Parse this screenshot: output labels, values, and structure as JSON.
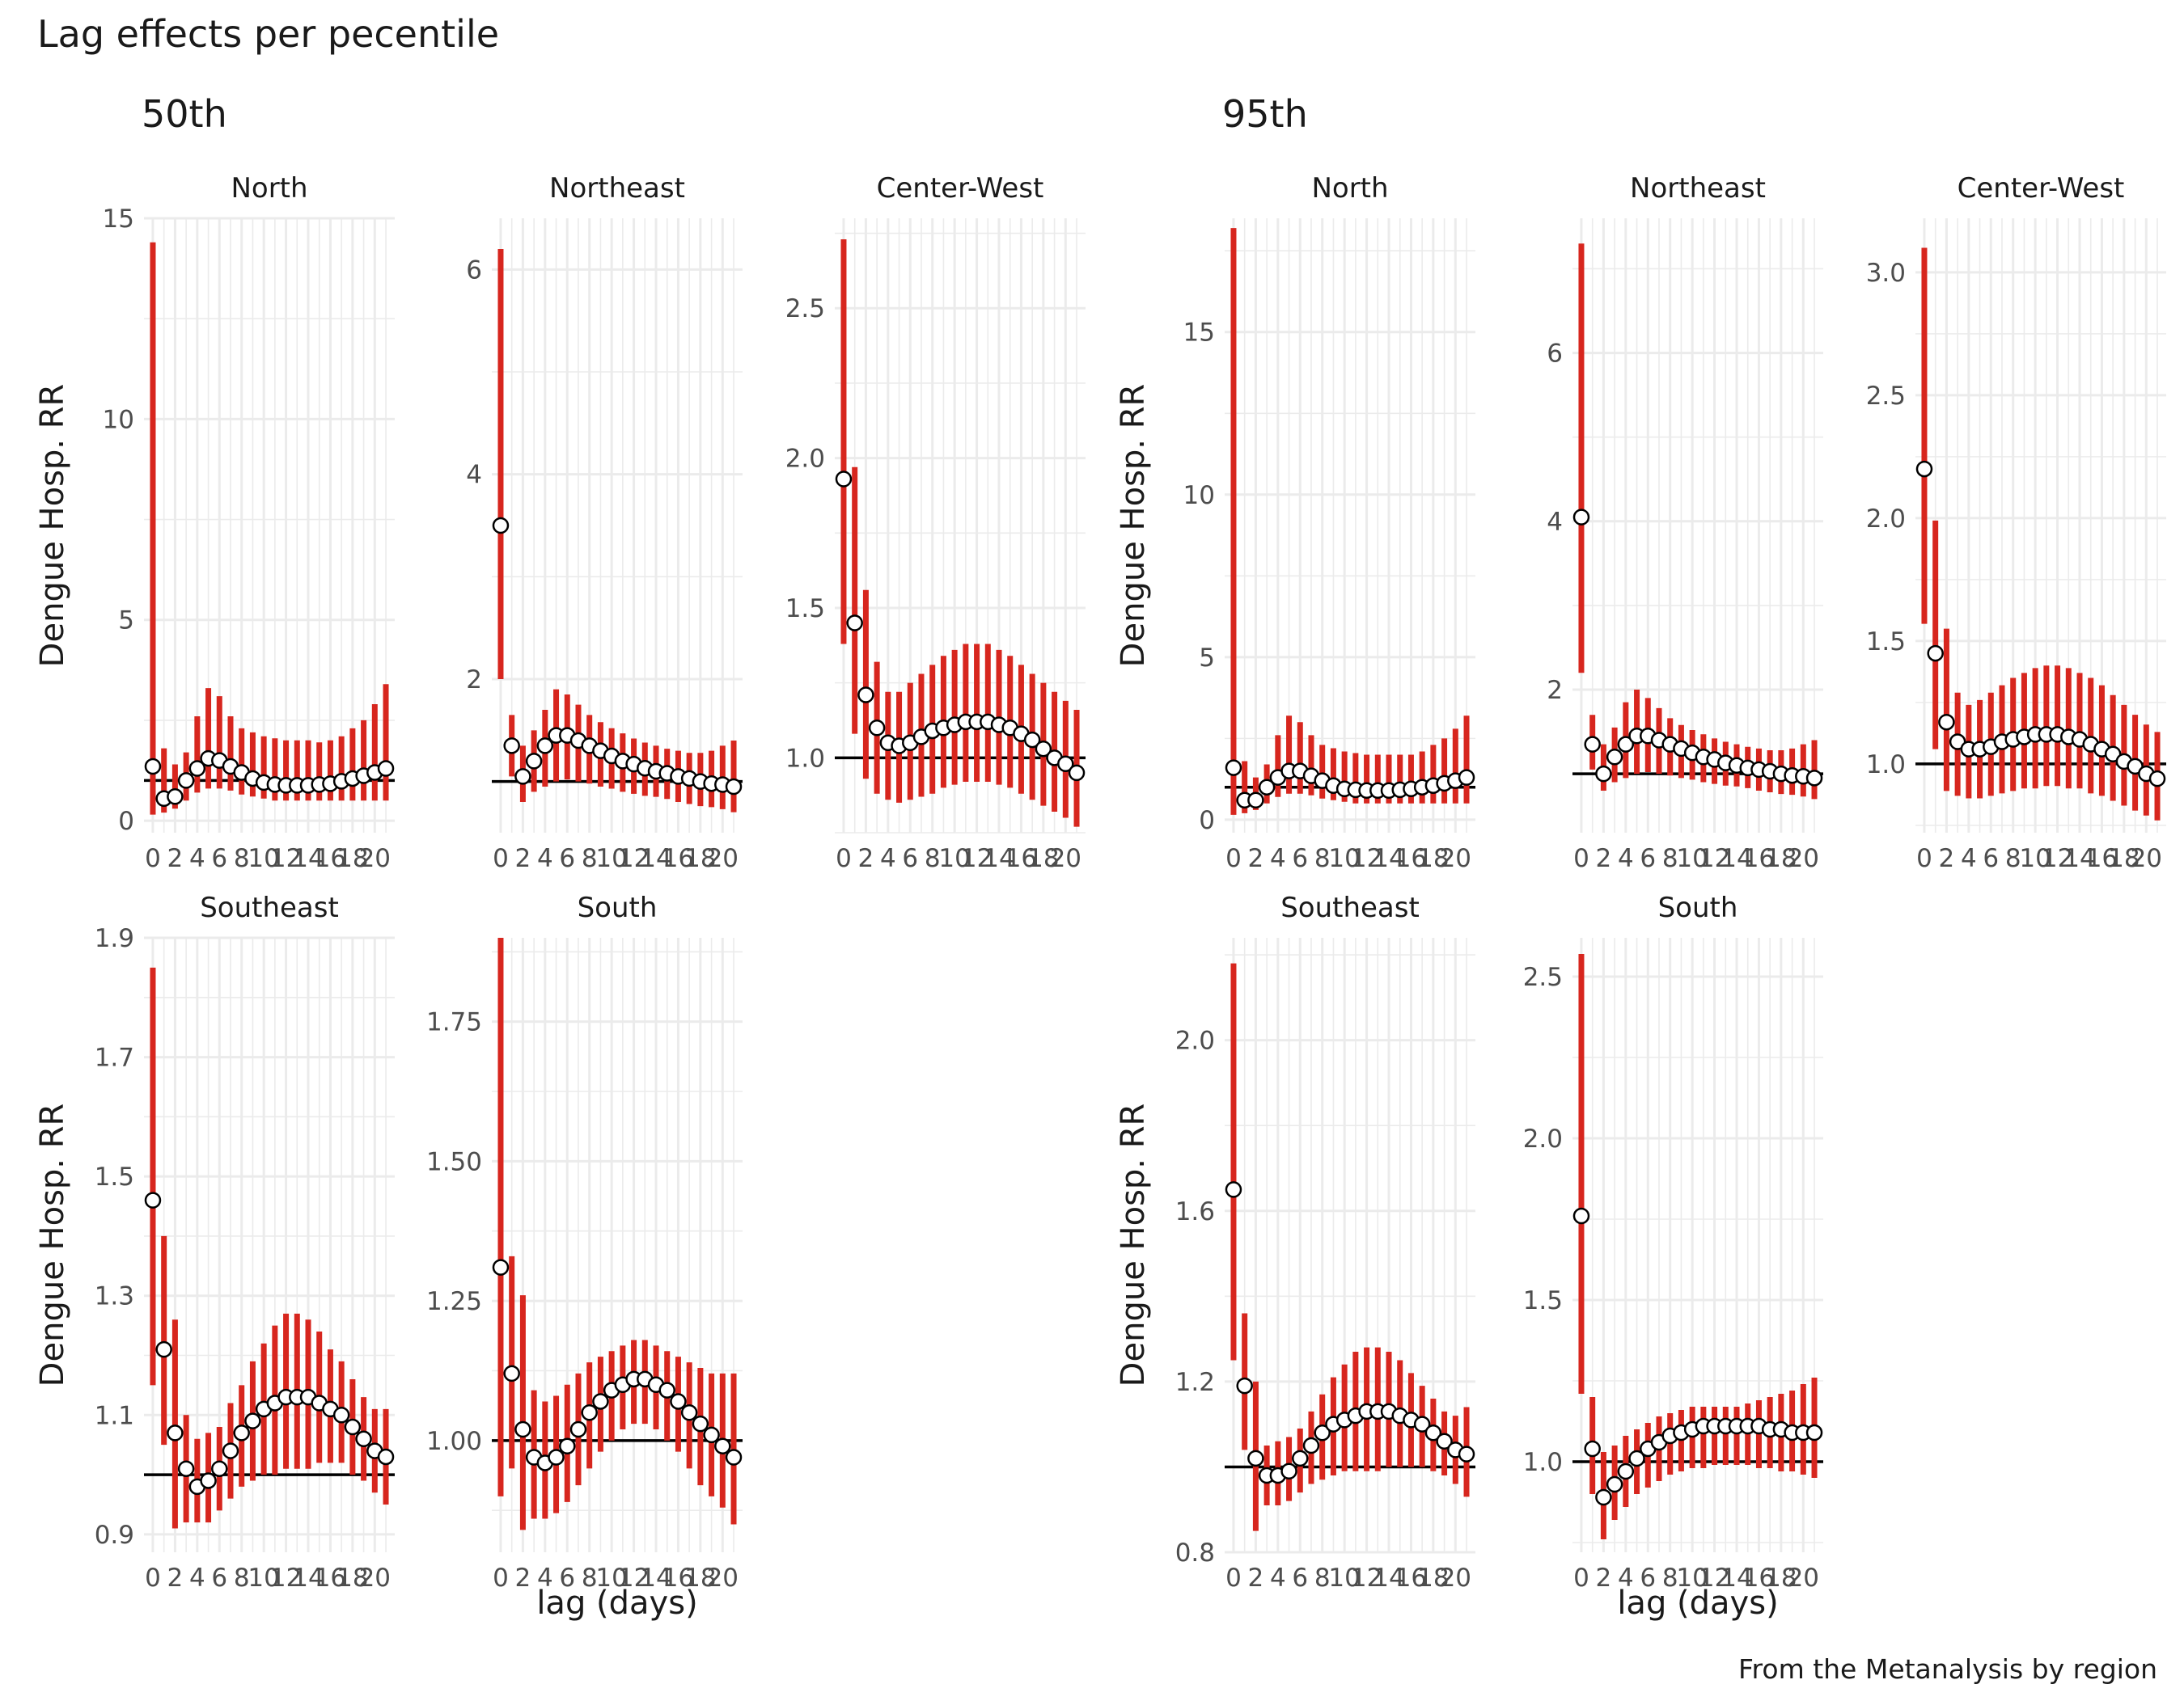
{
  "figure": {
    "title": "Lag effects per pecentile",
    "caption": "From the Metanalysis by region"
  },
  "colors": {
    "ci_bar": "#d7261e",
    "grid": "#ebebeb",
    "reference_line": "#000000",
    "point_fill": "#ffffff",
    "point_stroke": "#000000",
    "text": "#1a1a1a",
    "tick_text": "#4d4d4d"
  },
  "chart_data": [
    {
      "type": "scatter",
      "group_title": "50th",
      "xlabel": "lag (days)",
      "ylabel": "Dengue Hosp. RR",
      "reference_line_y": 1,
      "x": [
        0,
        1,
        2,
        3,
        4,
        5,
        6,
        7,
        8,
        9,
        10,
        11,
        12,
        13,
        14,
        15,
        16,
        17,
        18,
        19,
        20,
        21
      ],
      "x_tick_labels": [
        "0",
        "2",
        "4",
        "6",
        "8",
        "10",
        "12",
        "14",
        "16",
        "18",
        "20"
      ],
      "grid": true,
      "panels": [
        {
          "region": "North",
          "ylim": [
            -0.3,
            15
          ],
          "y_ticks": [
            0,
            5,
            10,
            15
          ],
          "y_tick_labels": [
            "0",
            "5",
            "10",
            "15"
          ],
          "rr": [
            1.35,
            0.55,
            0.6,
            1.0,
            1.3,
            1.55,
            1.5,
            1.35,
            1.2,
            1.05,
            0.95,
            0.9,
            0.88,
            0.88,
            0.88,
            0.9,
            0.92,
            0.98,
            1.05,
            1.12,
            1.2,
            1.3
          ],
          "lower": [
            0.15,
            0.2,
            0.3,
            0.5,
            0.7,
            0.8,
            0.8,
            0.75,
            0.65,
            0.6,
            0.55,
            0.5,
            0.5,
            0.5,
            0.5,
            0.5,
            0.5,
            0.5,
            0.5,
            0.5,
            0.5,
            0.5
          ],
          "upper": [
            14.4,
            1.8,
            1.4,
            1.7,
            2.6,
            3.3,
            3.1,
            2.6,
            2.3,
            2.2,
            2.1,
            2.05,
            2.0,
            2.0,
            2.0,
            1.95,
            2.0,
            2.1,
            2.3,
            2.5,
            2.9,
            3.4
          ]
        },
        {
          "region": "Northeast",
          "ylim": [
            0.5,
            6.5
          ],
          "y_ticks": [
            2,
            4,
            6
          ],
          "y_tick_labels": [
            "2",
            "4",
            "6"
          ],
          "rr": [
            3.5,
            1.35,
            1.05,
            1.2,
            1.35,
            1.45,
            1.45,
            1.4,
            1.35,
            1.3,
            1.25,
            1.2,
            1.17,
            1.13,
            1.1,
            1.08,
            1.05,
            1.03,
            1.0,
            0.98,
            0.97,
            0.95
          ],
          "lower": [
            2.0,
            1.05,
            0.8,
            0.9,
            0.95,
            1.0,
            1.02,
            1.0,
            0.98,
            0.95,
            0.93,
            0.9,
            0.88,
            0.86,
            0.85,
            0.83,
            0.8,
            0.78,
            0.76,
            0.75,
            0.73,
            0.7
          ],
          "upper": [
            6.2,
            1.65,
            1.35,
            1.5,
            1.7,
            1.9,
            1.85,
            1.75,
            1.65,
            1.58,
            1.52,
            1.47,
            1.42,
            1.38,
            1.35,
            1.32,
            1.3,
            1.28,
            1.28,
            1.3,
            1.35,
            1.4
          ]
        },
        {
          "region": "Center-West",
          "ylim": [
            0.75,
            2.8
          ],
          "y_ticks": [
            1.0,
            1.5,
            2.0,
            2.5
          ],
          "y_tick_labels": [
            "1.0",
            "1.5",
            "2.0",
            "2.5"
          ],
          "rr": [
            1.93,
            1.45,
            1.21,
            1.1,
            1.05,
            1.04,
            1.05,
            1.07,
            1.09,
            1.1,
            1.11,
            1.12,
            1.12,
            1.12,
            1.11,
            1.1,
            1.08,
            1.06,
            1.03,
            1.0,
            0.98,
            0.95
          ],
          "lower": [
            1.38,
            1.08,
            0.93,
            0.88,
            0.86,
            0.85,
            0.86,
            0.87,
            0.88,
            0.9,
            0.91,
            0.92,
            0.92,
            0.92,
            0.91,
            0.9,
            0.88,
            0.86,
            0.84,
            0.82,
            0.8,
            0.77
          ],
          "upper": [
            2.73,
            1.97,
            1.56,
            1.32,
            1.22,
            1.22,
            1.25,
            1.28,
            1.31,
            1.34,
            1.36,
            1.38,
            1.38,
            1.38,
            1.36,
            1.34,
            1.31,
            1.28,
            1.25,
            1.22,
            1.19,
            1.16
          ]
        },
        {
          "region": "Southeast",
          "ylim": [
            0.87,
            1.9
          ],
          "y_ticks": [
            0.9,
            1.1,
            1.3,
            1.5,
            1.7,
            1.9
          ],
          "y_tick_labels": [
            "0.9",
            "1.1",
            "1.3",
            "1.5",
            "1.7",
            "1.9"
          ],
          "rr": [
            1.46,
            1.21,
            1.07,
            1.01,
            0.98,
            0.99,
            1.01,
            1.04,
            1.07,
            1.09,
            1.11,
            1.12,
            1.13,
            1.13,
            1.13,
            1.12,
            1.11,
            1.1,
            1.08,
            1.06,
            1.04,
            1.03
          ],
          "lower": [
            1.15,
            1.05,
            0.91,
            0.92,
            0.92,
            0.92,
            0.94,
            0.96,
            0.98,
            0.99,
            1.0,
            1.0,
            1.01,
            1.01,
            1.01,
            1.02,
            1.02,
            1.02,
            1.0,
            0.99,
            0.97,
            0.95
          ],
          "upper": [
            1.85,
            1.4,
            1.26,
            1.1,
            1.06,
            1.07,
            1.08,
            1.12,
            1.15,
            1.19,
            1.22,
            1.25,
            1.27,
            1.27,
            1.26,
            1.24,
            1.21,
            1.19,
            1.16,
            1.13,
            1.11,
            1.11
          ]
        },
        {
          "region": "South",
          "ylim": [
            0.8,
            1.9
          ],
          "y_ticks": [
            1.0,
            1.25,
            1.5,
            1.75
          ],
          "y_tick_labels": [
            "1.00",
            "1.25",
            "1.50",
            "1.75"
          ],
          "rr": [
            1.31,
            1.12,
            1.02,
            0.97,
            0.96,
            0.97,
            0.99,
            1.02,
            1.05,
            1.07,
            1.09,
            1.1,
            1.11,
            1.11,
            1.1,
            1.09,
            1.07,
            1.05,
            1.03,
            1.01,
            0.99,
            0.97
          ],
          "lower": [
            0.9,
            0.95,
            0.84,
            0.86,
            0.86,
            0.87,
            0.89,
            0.92,
            0.95,
            0.98,
            1.0,
            1.02,
            1.03,
            1.03,
            1.02,
            1.0,
            0.98,
            0.95,
            0.92,
            0.9,
            0.88,
            0.85
          ],
          "upper": [
            1.9,
            1.33,
            1.26,
            1.09,
            1.07,
            1.08,
            1.1,
            1.12,
            1.14,
            1.15,
            1.16,
            1.17,
            1.18,
            1.18,
            1.17,
            1.16,
            1.15,
            1.14,
            1.13,
            1.12,
            1.12,
            1.12
          ]
        }
      ]
    },
    {
      "type": "scatter",
      "group_title": "95th",
      "xlabel": "lag (days)",
      "ylabel": "Dengue Hosp. RR",
      "reference_line_y": 1,
      "x": [
        0,
        1,
        2,
        3,
        4,
        5,
        6,
        7,
        8,
        9,
        10,
        11,
        12,
        13,
        14,
        15,
        16,
        17,
        18,
        19,
        20,
        21
      ],
      "x_tick_labels": [
        "0",
        "2",
        "4",
        "6",
        "8",
        "10",
        "12",
        "14",
        "16",
        "18",
        "20"
      ],
      "grid": true,
      "panels": [
        {
          "region": "North",
          "ylim": [
            -0.4,
            18.5
          ],
          "y_ticks": [
            0,
            5,
            10,
            15
          ],
          "y_tick_labels": [
            "0",
            "5",
            "10",
            "15"
          ],
          "rr": [
            1.6,
            0.6,
            0.6,
            1.0,
            1.3,
            1.5,
            1.5,
            1.35,
            1.2,
            1.05,
            0.95,
            0.92,
            0.9,
            0.9,
            0.9,
            0.92,
            0.95,
            1.0,
            1.05,
            1.12,
            1.2,
            1.3
          ],
          "lower": [
            0.15,
            0.2,
            0.3,
            0.5,
            0.7,
            0.8,
            0.8,
            0.75,
            0.65,
            0.6,
            0.55,
            0.5,
            0.5,
            0.5,
            0.5,
            0.5,
            0.5,
            0.5,
            0.5,
            0.5,
            0.5,
            0.5
          ],
          "upper": [
            18.2,
            1.8,
            1.3,
            1.7,
            2.6,
            3.2,
            3.0,
            2.6,
            2.3,
            2.2,
            2.1,
            2.05,
            2.0,
            2.0,
            2.0,
            2.0,
            2.0,
            2.1,
            2.3,
            2.5,
            2.8,
            3.2
          ]
        },
        {
          "region": "Northeast",
          "ylim": [
            0.3,
            7.6
          ],
          "y_ticks": [
            2,
            4,
            6
          ],
          "y_tick_labels": [
            "2",
            "4",
            "6"
          ],
          "rr": [
            4.05,
            1.35,
            1.0,
            1.2,
            1.35,
            1.45,
            1.45,
            1.4,
            1.35,
            1.3,
            1.25,
            1.2,
            1.17,
            1.13,
            1.1,
            1.07,
            1.05,
            1.03,
            1.0,
            0.98,
            0.97,
            0.95
          ],
          "lower": [
            2.2,
            1.05,
            0.8,
            0.9,
            0.95,
            1.0,
            1.02,
            1.0,
            0.98,
            0.95,
            0.93,
            0.9,
            0.88,
            0.86,
            0.85,
            0.83,
            0.8,
            0.78,
            0.76,
            0.75,
            0.73,
            0.7
          ],
          "upper": [
            7.3,
            1.7,
            1.35,
            1.55,
            1.85,
            2.0,
            1.9,
            1.78,
            1.66,
            1.58,
            1.52,
            1.47,
            1.42,
            1.38,
            1.35,
            1.32,
            1.3,
            1.28,
            1.28,
            1.3,
            1.35,
            1.4
          ]
        },
        {
          "region": "Center-West",
          "ylim": [
            0.72,
            3.22
          ],
          "y_ticks": [
            1.0,
            1.5,
            2.0,
            2.5,
            3.0
          ],
          "y_tick_labels": [
            "1.0",
            "1.5",
            "2.0",
            "2.5",
            "3.0"
          ],
          "rr": [
            2.2,
            1.45,
            1.17,
            1.09,
            1.06,
            1.06,
            1.07,
            1.09,
            1.1,
            1.11,
            1.12,
            1.12,
            1.12,
            1.11,
            1.1,
            1.08,
            1.06,
            1.04,
            1.01,
            0.99,
            0.96,
            0.94
          ],
          "lower": [
            1.57,
            1.06,
            0.89,
            0.87,
            0.86,
            0.86,
            0.87,
            0.88,
            0.89,
            0.9,
            0.9,
            0.91,
            0.91,
            0.9,
            0.9,
            0.88,
            0.87,
            0.85,
            0.83,
            0.81,
            0.79,
            0.77
          ],
          "upper": [
            3.1,
            1.99,
            1.55,
            1.29,
            1.24,
            1.26,
            1.29,
            1.32,
            1.35,
            1.37,
            1.39,
            1.4,
            1.4,
            1.39,
            1.37,
            1.35,
            1.32,
            1.28,
            1.24,
            1.2,
            1.16,
            1.13
          ]
        },
        {
          "region": "Southeast",
          "ylim": [
            0.8,
            2.24
          ],
          "y_ticks": [
            0.8,
            1.2,
            1.6,
            2.0
          ],
          "y_tick_labels": [
            "0.8",
            "1.2",
            "1.6",
            "2.0"
          ],
          "rr": [
            1.65,
            1.19,
            1.02,
            0.98,
            0.98,
            0.99,
            1.02,
            1.05,
            1.08,
            1.1,
            1.11,
            1.12,
            1.13,
            1.13,
            1.13,
            1.12,
            1.11,
            1.1,
            1.08,
            1.06,
            1.04,
            1.03
          ],
          "lower": [
            1.25,
            1.04,
            0.85,
            0.91,
            0.91,
            0.92,
            0.94,
            0.96,
            0.97,
            0.98,
            0.99,
            0.99,
            0.99,
            0.99,
            1.0,
            1.0,
            1.0,
            1.0,
            0.99,
            0.98,
            0.96,
            0.93
          ],
          "upper": [
            2.18,
            1.36,
            1.2,
            1.05,
            1.06,
            1.07,
            1.09,
            1.13,
            1.17,
            1.21,
            1.24,
            1.27,
            1.28,
            1.28,
            1.27,
            1.25,
            1.22,
            1.19,
            1.16,
            1.13,
            1.12,
            1.14
          ]
        },
        {
          "region": "South",
          "ylim": [
            0.72,
            2.62
          ],
          "y_ticks": [
            1.0,
            1.5,
            2.0,
            2.5
          ],
          "y_tick_labels": [
            "1.0",
            "1.5",
            "2.0",
            "2.5"
          ],
          "rr": [
            1.76,
            1.04,
            0.89,
            0.93,
            0.97,
            1.01,
            1.04,
            1.06,
            1.08,
            1.09,
            1.1,
            1.11,
            1.11,
            1.11,
            1.11,
            1.11,
            1.11,
            1.1,
            1.1,
            1.09,
            1.09,
            1.09
          ],
          "lower": [
            1.21,
            0.9,
            0.76,
            0.82,
            0.86,
            0.9,
            0.92,
            0.94,
            0.96,
            0.97,
            0.98,
            0.98,
            0.99,
            0.99,
            0.99,
            0.99,
            0.98,
            0.98,
            0.97,
            0.97,
            0.96,
            0.95
          ],
          "upper": [
            2.57,
            1.2,
            1.03,
            1.05,
            1.08,
            1.1,
            1.12,
            1.14,
            1.15,
            1.16,
            1.17,
            1.17,
            1.17,
            1.17,
            1.17,
            1.18,
            1.19,
            1.2,
            1.21,
            1.22,
            1.24,
            1.26
          ]
        }
      ]
    }
  ]
}
